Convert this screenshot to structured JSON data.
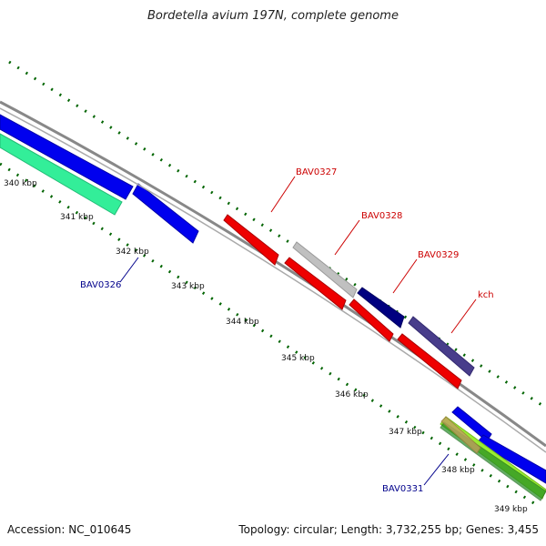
{
  "title": "Bordetella avium 197N, complete genome",
  "footer": {
    "accession": "Accession: NC_010645",
    "summary": "Topology: circular; Length: 3,732,255 bp; Genes: 3,455"
  },
  "colors": {
    "backbone": "#888888",
    "forward_cds": "#0000ee",
    "reverse_cds": "#ee0000",
    "grey_cds": "#c0c0c0",
    "navy_cds": "#000080",
    "slate_cds": "#483d8b",
    "aquamarine_track": "#33ee99",
    "green_track": "#228b22",
    "lime_track": "#99ee33",
    "ticks": "#006400",
    "label_blue": "#00008b",
    "label_red": "#cc0000"
  },
  "ticks": [
    {
      "label": "340 kbp"
    },
    {
      "label": "341 kbp"
    },
    {
      "label": "342 kbp"
    },
    {
      "label": "343 kbp"
    },
    {
      "label": "344 kbp"
    },
    {
      "label": "345 kbp"
    },
    {
      "label": "346 kbp"
    },
    {
      "label": "347 kbp"
    },
    {
      "label": "348 kbp"
    },
    {
      "label": "349 kbp"
    }
  ],
  "gene_labels": [
    {
      "name": "BAV0326",
      "color": "#00008b"
    },
    {
      "name": "BAV0327",
      "color": "#cc0000"
    },
    {
      "name": "BAV0328",
      "color": "#cc0000"
    },
    {
      "name": "BAV0329",
      "color": "#cc0000"
    },
    {
      "name": "kch",
      "color": "#cc0000"
    },
    {
      "name": "BAV0331",
      "color": "#00008b"
    }
  ]
}
